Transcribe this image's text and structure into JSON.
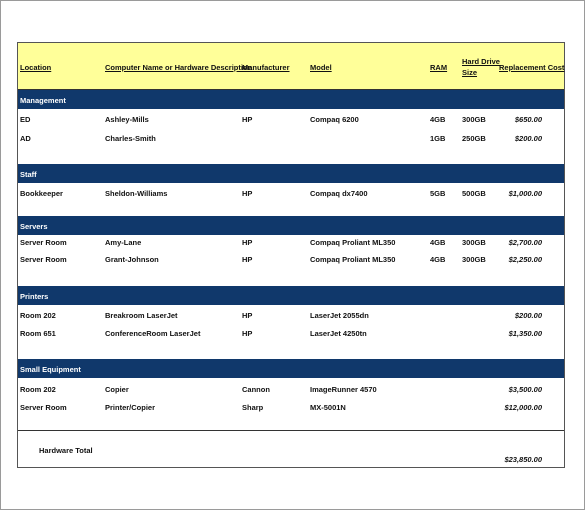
{
  "headers": {
    "location": "Location",
    "computer": "Computer Name or Hardware Description",
    "manufacturer": "Manufacturer",
    "model": "Model",
    "ram": "RAM",
    "hd_line1": "Hard Drive",
    "hd_line2": "Size",
    "cost": "Replacement Cost"
  },
  "sections": [
    {
      "title": "Management",
      "rows": [
        {
          "location": "ED",
          "computer": "Ashley-Mills",
          "manufacturer": "HP",
          "model": "Compaq 6200",
          "ram": "4GB",
          "hd": "300GB",
          "cost": "$650.00"
        },
        {
          "location": "AD",
          "computer": "Charles-Smith",
          "manufacturer": "",
          "model": "",
          "ram": "1GB",
          "hd": "250GB",
          "cost": "$200.00"
        }
      ]
    },
    {
      "title": "Staff",
      "rows": [
        {
          "location": "Bookkeeper",
          "computer": "Sheldon-Williams",
          "manufacturer": "HP",
          "model": "Compaq dx7400",
          "ram": "5GB",
          "hd": "500GB",
          "cost": "$1,000.00"
        }
      ]
    },
    {
      "title": "Servers",
      "rows": [
        {
          "location": "Server Room",
          "computer": "Amy-Lane",
          "manufacturer": "HP",
          "model": "Compaq Proliant ML350",
          "ram": "4GB",
          "hd": "300GB",
          "cost": "$2,700.00"
        },
        {
          "location": "Server Room",
          "computer": "Grant-Johnson",
          "manufacturer": "HP",
          "model": "Compaq Proliant ML350",
          "ram": "4GB",
          "hd": "300GB",
          "cost": "$2,250.00"
        }
      ]
    },
    {
      "title": "Printers",
      "rows": [
        {
          "location": "Room 202",
          "computer": "Breakroom LaserJet",
          "manufacturer": "HP",
          "model": "LaserJet 2055dn",
          "ram": "",
          "hd": "",
          "cost": "$200.00"
        },
        {
          "location": "Room 651",
          "computer": "ConferenceRoom LaserJet",
          "manufacturer": "HP",
          "model": "LaserJet 4250tn",
          "ram": "",
          "hd": "",
          "cost": "$1,350.00"
        }
      ]
    },
    {
      "title": "Small Equipment",
      "rows": [
        {
          "location": "Room 202",
          "computer": "Copier",
          "manufacturer": "Cannon",
          "model": "ImageRunner 4570",
          "ram": "",
          "hd": "",
          "cost": "$3,500.00"
        },
        {
          "location": "Server Room",
          "computer": "Printer/Copier",
          "manufacturer": "Sharp",
          "model": "MX-5001N",
          "ram": "",
          "hd": "",
          "cost": "$12,000.00"
        }
      ]
    }
  ],
  "total": {
    "label": "Hardware Total",
    "value": "$23,850.00"
  }
}
